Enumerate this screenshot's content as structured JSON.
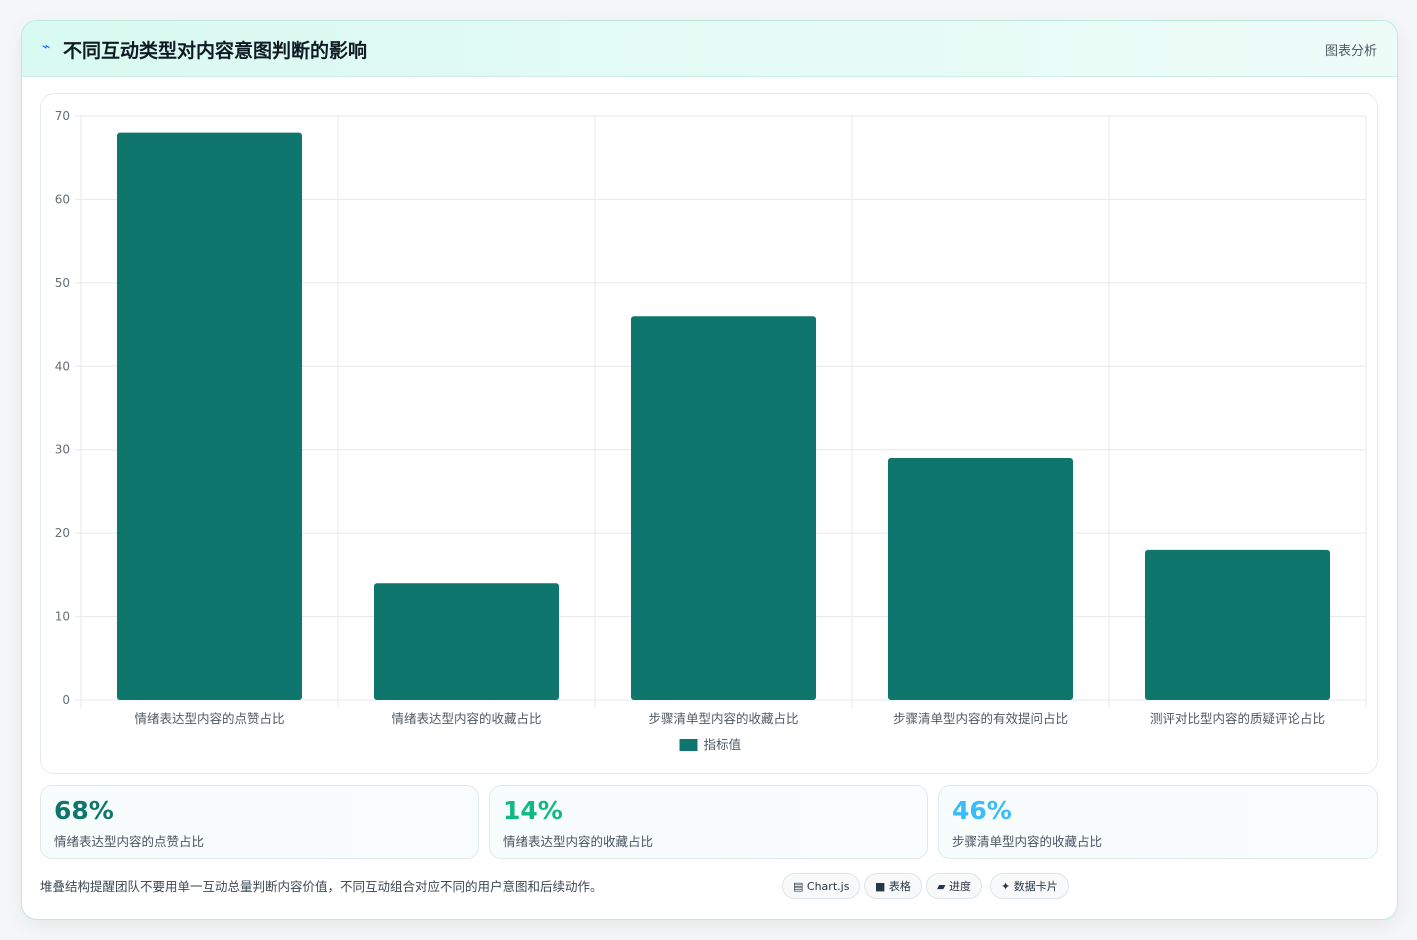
{
  "header": {
    "icon": "activity-icon",
    "title": "不同互动类型对内容意图判断的影响",
    "tag": "图表分析"
  },
  "colors": {
    "bar": "#0f766e",
    "stat1": "#0f766e",
    "stat2": "#10b981",
    "stat3": "#38bdf8"
  },
  "chart_data": {
    "type": "bar",
    "categories": [
      "情绪表达型内容的点赞占比",
      "情绪表达型内容的收藏占比",
      "步骤清单型内容的收藏占比",
      "步骤清单型内容的有效提问占比",
      "测评对比型内容的质疑评论占比"
    ],
    "series": [
      {
        "name": "指标值",
        "values": [
          68,
          14,
          46,
          29,
          18
        ]
      }
    ],
    "ylim": [
      0,
      70
    ],
    "yticks": [
      0,
      10,
      20,
      30,
      40,
      50,
      60,
      70
    ],
    "grid": true,
    "legend": "bottom"
  },
  "stats": [
    {
      "value": "68%",
      "label": "情绪表达型内容的点赞占比"
    },
    {
      "value": "14%",
      "label": "情绪表达型内容的收藏占比"
    },
    {
      "value": "46%",
      "label": "步骤清单型内容的收藏占比"
    }
  ],
  "note": "堆叠结构提醒团队不要用单一互动总量判断内容价值，不同互动组合对应不同的用户意图和后续动作。",
  "pills": [
    {
      "icon": "chart-icon",
      "label": "Chart.js"
    },
    {
      "icon": "table-icon",
      "label": "表格"
    },
    {
      "icon": "progress-icon",
      "label": "进度"
    },
    {
      "icon": "sparkle-icon",
      "label": "数据卡片"
    }
  ]
}
